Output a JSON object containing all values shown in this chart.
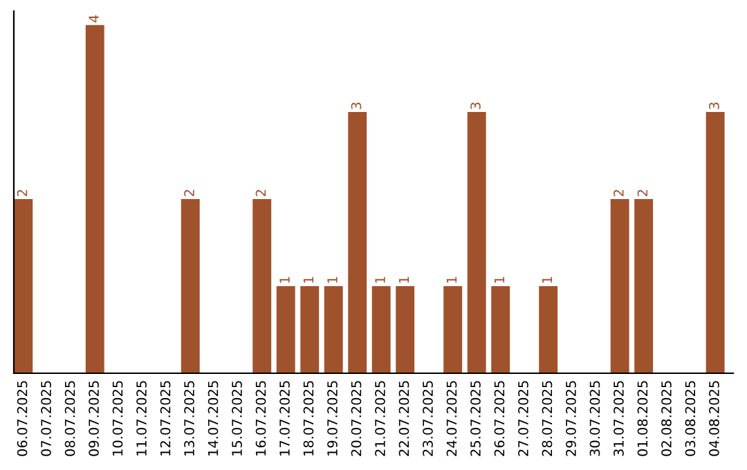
{
  "chart_data": {
    "type": "bar",
    "categories": [
      "06.07.2025",
      "07.07.2025",
      "08.07.2025",
      "09.07.2025",
      "10.07.2025",
      "11.07.2025",
      "12.07.2025",
      "13.07.2025",
      "14.07.2025",
      "15.07.2025",
      "16.07.2025",
      "17.07.2025",
      "18.07.2025",
      "19.07.2025",
      "20.07.2025",
      "21.07.2025",
      "22.07.2025",
      "23.07.2025",
      "24.07.2025",
      "25.07.2025",
      "26.07.2025",
      "27.07.2025",
      "28.07.2025",
      "29.07.2025",
      "30.07.2025",
      "31.07.2025",
      "01.08.2025",
      "02.08.2025",
      "03.08.2025",
      "04.08.2025"
    ],
    "values": [
      2,
      0,
      0,
      4,
      0,
      0,
      0,
      2,
      0,
      0,
      2,
      1,
      1,
      1,
      3,
      1,
      1,
      0,
      1,
      3,
      1,
      0,
      1,
      0,
      0,
      2,
      2,
      0,
      0,
      3
    ],
    "value_labels": [
      "2",
      null,
      null,
      "4",
      null,
      null,
      null,
      "2",
      null,
      null,
      "2",
      "1",
      "1",
      "1",
      "3",
      "1",
      "1",
      null,
      "1",
      "3",
      "1",
      null,
      "1",
      null,
      null,
      "2",
      "2",
      null,
      null,
      "3"
    ],
    "color": "#a0522d",
    "tick_labels": "x",
    "grid": false,
    "legend": false
  }
}
